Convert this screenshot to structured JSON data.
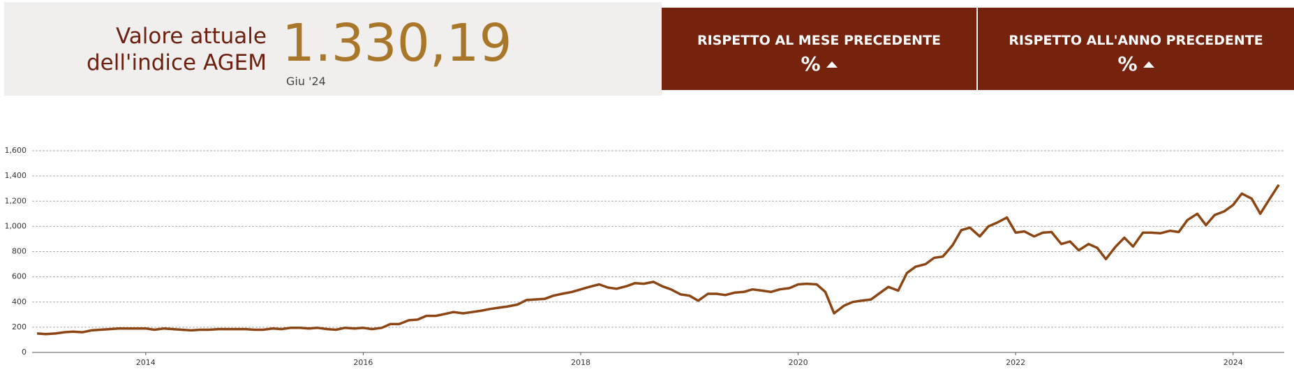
{
  "header": {
    "label": [
      "Valore attuale",
      "dell'indice AGEM"
    ],
    "value": "1.330,19",
    "date": "Giu '24",
    "boxes": [
      {
        "title": "RISPETTO AL MESE PRECEDENTE",
        "value": "%"
      },
      {
        "title": "RISPETTO ALL'ANNO PRECEDENTE",
        "value": "%"
      }
    ]
  },
  "chart_data": {
    "type": "line",
    "color": "#8b4513",
    "grid": true,
    "xlim": [
      2013,
      2024.47
    ],
    "xticks": [
      2014,
      2016,
      2018,
      2020,
      2022,
      2024
    ],
    "ylim": [
      0,
      1600
    ],
    "yticks": [
      0,
      200,
      400,
      600,
      800,
      {
        "value": 1000,
        "label": "1,000"
      },
      {
        "value": 1200,
        "label": "1,200"
      },
      {
        "value": 1400,
        "label": "1,400"
      },
      {
        "value": 1600,
        "label": "1,600"
      }
    ],
    "x": [
      2013.0,
      2013.08,
      2013.17,
      2013.25,
      2013.33,
      2013.42,
      2013.5,
      2013.58,
      2013.67,
      2013.75,
      2013.83,
      2013.92,
      2014.0,
      2014.08,
      2014.17,
      2014.25,
      2014.33,
      2014.42,
      2014.5,
      2014.58,
      2014.67,
      2014.75,
      2014.83,
      2014.92,
      2015.0,
      2015.08,
      2015.17,
      2015.25,
      2015.33,
      2015.42,
      2015.5,
      2015.58,
      2015.67,
      2015.75,
      2015.83,
      2015.92,
      2016.0,
      2016.08,
      2016.17,
      2016.25,
      2016.33,
      2016.42,
      2016.5,
      2016.58,
      2016.67,
      2016.75,
      2016.83,
      2016.92,
      2017.0,
      2017.08,
      2017.17,
      2017.25,
      2017.33,
      2017.42,
      2017.5,
      2017.58,
      2017.67,
      2017.75,
      2017.83,
      2017.92,
      2018.0,
      2018.08,
      2018.17,
      2018.25,
      2018.33,
      2018.42,
      2018.5,
      2018.58,
      2018.67,
      2018.75,
      2018.83,
      2018.92,
      2019.0,
      2019.08,
      2019.17,
      2019.25,
      2019.33,
      2019.42,
      2019.5,
      2019.58,
      2019.67,
      2019.75,
      2019.83,
      2019.92,
      2020.0,
      2020.08,
      2020.17,
      2020.25,
      2020.33,
      2020.42,
      2020.5,
      2020.58,
      2020.67,
      2020.75,
      2020.83,
      2020.92,
      2021.0,
      2021.08,
      2021.17,
      2021.25,
      2021.33,
      2021.42,
      2021.5,
      2021.58,
      2021.67,
      2021.75,
      2021.83,
      2021.92,
      2022.0,
      2022.08,
      2022.17,
      2022.25,
      2022.33,
      2022.42,
      2022.5,
      2022.58,
      2022.67,
      2022.75,
      2022.83,
      2022.92,
      2023.0,
      2023.08,
      2023.17,
      2023.25,
      2023.33,
      2023.42,
      2023.5,
      2023.58,
      2023.67,
      2023.75,
      2023.83,
      2023.92,
      2024.0,
      2024.08,
      2024.17,
      2024.25,
      2024.33,
      2024.42
    ],
    "values": [
      150,
      145,
      150,
      160,
      165,
      160,
      175,
      180,
      185,
      190,
      190,
      190,
      190,
      180,
      190,
      185,
      180,
      175,
      180,
      180,
      185,
      185,
      185,
      185,
      180,
      180,
      190,
      185,
      195,
      195,
      190,
      195,
      185,
      180,
      195,
      190,
      195,
      185,
      195,
      225,
      225,
      255,
      260,
      290,
      290,
      305,
      320,
      310,
      320,
      330,
      345,
      355,
      365,
      380,
      415,
      420,
      425,
      450,
      465,
      480,
      500,
      520,
      540,
      515,
      505,
      525,
      550,
      545,
      560,
      525,
      500,
      460,
      450,
      410,
      465,
      465,
      455,
      475,
      480,
      500,
      490,
      480,
      500,
      510,
      540,
      545,
      540,
      480,
      310,
      370,
      400,
      410,
      420,
      470,
      520,
      490,
      630,
      680,
      700,
      750,
      760,
      850,
      970,
      990,
      920,
      1000,
      1030,
      1070,
      950,
      960,
      920,
      950,
      955,
      860,
      880,
      810,
      860,
      830,
      740,
      840,
      910,
      840,
      950,
      950,
      945,
      965,
      955,
      1050,
      1100,
      1010,
      1090,
      1120,
      1170,
      1260,
      1220,
      1100,
      1210,
      1330
    ]
  }
}
